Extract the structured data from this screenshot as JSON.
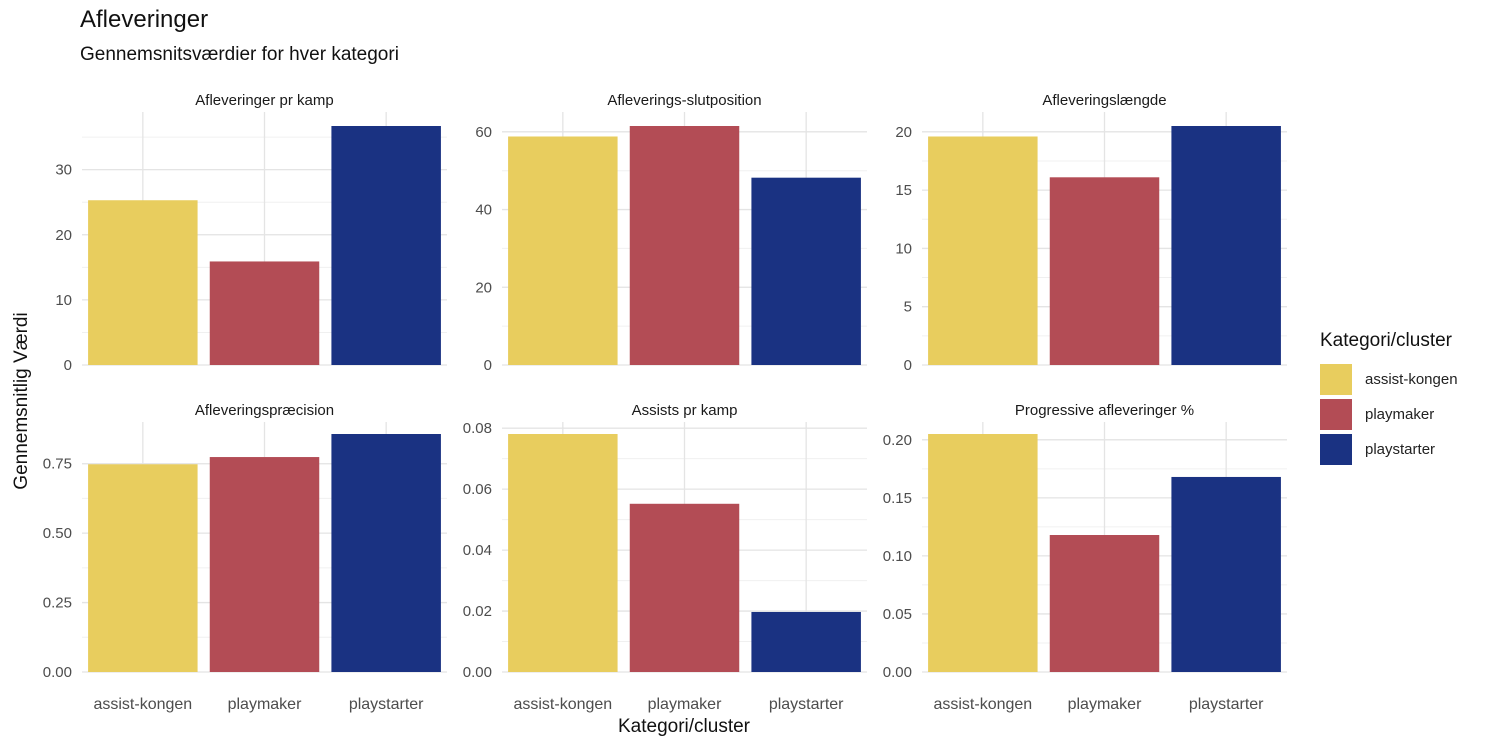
{
  "title": "Afleveringer",
  "subtitle": "Gennemsnitsværdier for hver kategori",
  "ylabel": "Gennemsnitlig Værdi",
  "xlabel": "Kategori/cluster",
  "legend": {
    "title": "Kategori/cluster",
    "items": [
      {
        "label": "assist-kongen",
        "color": "#E8CD5E"
      },
      {
        "label": "playmaker",
        "color": "#B34C55"
      },
      {
        "label": "playstarter",
        "color": "#1A3282"
      }
    ]
  },
  "chart_data": [
    {
      "type": "bar",
      "title": "Afleveringer pr kamp",
      "categories": [
        "assist-kongen",
        "playmaker",
        "playstarter"
      ],
      "values": [
        25.3,
        15.9,
        36.7
      ],
      "ylim": [
        0,
        36.7
      ],
      "yticks": [
        "0",
        "10",
        "20",
        "30"
      ],
      "ytick_values": [
        0,
        10,
        20,
        30
      ],
      "minor_step": 5
    },
    {
      "type": "bar",
      "title": "Afleverings-slutposition",
      "categories": [
        "assist-kongen",
        "playmaker",
        "playstarter"
      ],
      "values": [
        58.8,
        61.5,
        48.2
      ],
      "ylim": [
        0,
        61.5
      ],
      "yticks": [
        "0",
        "20",
        "40",
        "60"
      ],
      "ytick_values": [
        0,
        20,
        40,
        60
      ],
      "minor_step": 10
    },
    {
      "type": "bar",
      "title": "Afleveringslængde",
      "categories": [
        "assist-kongen",
        "playmaker",
        "playstarter"
      ],
      "values": [
        19.6,
        16.1,
        20.5
      ],
      "ylim": [
        0,
        20.5
      ],
      "yticks": [
        "0",
        "5",
        "10",
        "15",
        "20"
      ],
      "ytick_values": [
        0,
        5,
        10,
        15,
        20
      ],
      "minor_step": 2.5
    },
    {
      "type": "bar",
      "title": "Afleveringspræcision",
      "categories": [
        "assist-kongen",
        "playmaker",
        "playstarter"
      ],
      "values": [
        0.748,
        0.774,
        0.857
      ],
      "ylim": [
        0,
        0.857
      ],
      "yticks": [
        "0.00",
        "0.25",
        "0.50",
        "0.75"
      ],
      "ytick_values": [
        0,
        0.25,
        0.5,
        0.75
      ],
      "minor_step": 0.125
    },
    {
      "type": "bar",
      "title": "Assists pr kamp",
      "categories": [
        "assist-kongen",
        "playmaker",
        "playstarter"
      ],
      "values": [
        0.0781,
        0.0552,
        0.0197
      ],
      "ylim": [
        0,
        0.0781
      ],
      "yticks": [
        "0.00",
        "0.02",
        "0.04",
        "0.06",
        "0.08"
      ],
      "ytick_values": [
        0,
        0.02,
        0.04,
        0.06,
        0.08
      ],
      "minor_step": 0.01
    },
    {
      "type": "bar",
      "title": "Progressive afleveringer %",
      "categories": [
        "assist-kongen",
        "playmaker",
        "playstarter"
      ],
      "values": [
        0.205,
        0.118,
        0.168
      ],
      "ylim": [
        0,
        0.205
      ],
      "yticks": [
        "0.00",
        "0.05",
        "0.10",
        "0.15",
        "0.20"
      ],
      "ytick_values": [
        0,
        0.05,
        0.1,
        0.15,
        0.2
      ],
      "minor_step": 0.025
    }
  ]
}
